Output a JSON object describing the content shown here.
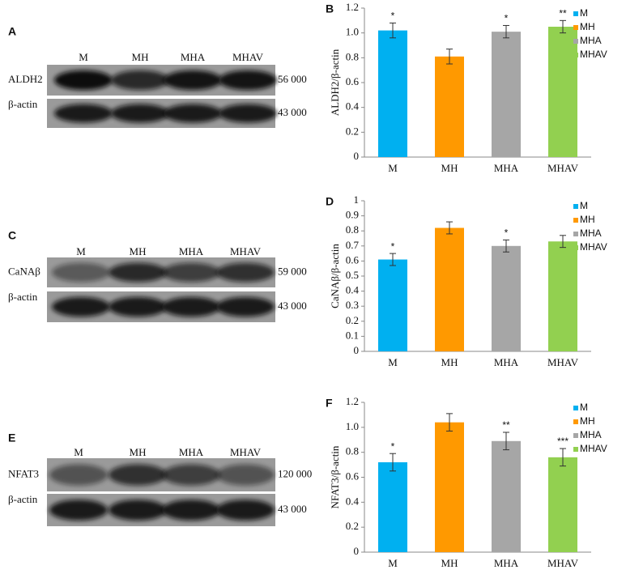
{
  "blots": [
    {
      "panel": "A",
      "lanes": [
        "M",
        "MH",
        "MHA",
        "MHAV"
      ],
      "rows": [
        {
          "protein": "ALDH2",
          "mw": "56 000"
        },
        {
          "protein": "β-actin",
          "mw": "43 000"
        }
      ]
    },
    {
      "panel": "C",
      "lanes": [
        "M",
        "MH",
        "MHA",
        "MHAV"
      ],
      "rows": [
        {
          "protein": "CaNAβ",
          "mw": "59 000"
        },
        {
          "protein": "β-actin",
          "mw": "43 000"
        }
      ]
    },
    {
      "panel": "E",
      "lanes": [
        "M",
        "MH",
        "MHA",
        "MHAV"
      ],
      "rows": [
        {
          "protein": "NFAT3",
          "mw": "120 000"
        },
        {
          "protein": "β-actin",
          "mw": "43 000"
        }
      ]
    }
  ],
  "chart_data": [
    {
      "type": "bar",
      "panel": "B",
      "y_label": "ALDH2/β-actin",
      "categories": [
        "M",
        "MH",
        "MHA",
        "MHAV"
      ],
      "values": [
        1.02,
        0.81,
        1.01,
        1.05
      ],
      "errors": [
        0.06,
        0.06,
        0.05,
        0.05
      ],
      "significance": [
        "*",
        null,
        "*",
        "**"
      ],
      "colors": [
        "#00b0f0",
        "#ff9900",
        "#a6a6a6",
        "#92d050"
      ],
      "ylim": [
        0,
        1.2
      ],
      "yticks": [
        0,
        0.2,
        0.4,
        0.6,
        0.8,
        {
          "value": 1,
          "label": "1.0"
        },
        1.2
      ],
      "legend": "top-right"
    },
    {
      "type": "bar",
      "panel": "D",
      "y_label": "CaNAβ/β-actin",
      "categories": [
        "M",
        "MH",
        "MHA",
        "MHAV"
      ],
      "values": [
        0.61,
        0.82,
        0.7,
        0.73
      ],
      "errors": [
        0.04,
        0.04,
        0.04,
        0.04
      ],
      "significance": [
        "*",
        null,
        "*",
        null
      ],
      "colors": [
        "#00b0f0",
        "#ff9900",
        "#a6a6a6",
        "#92d050"
      ],
      "ylim": [
        0,
        1
      ],
      "yticks": [
        0,
        0.1,
        0.2,
        0.3,
        0.4,
        0.5,
        0.6,
        0.7,
        0.8,
        0.9,
        1
      ],
      "legend": "top-right"
    },
    {
      "type": "bar",
      "panel": "F",
      "y_label": "NFAT3/β-actin",
      "categories": [
        "M",
        "MH",
        "MHA",
        "MHAV"
      ],
      "values": [
        0.72,
        1.04,
        0.89,
        0.76
      ],
      "errors": [
        0.07,
        0.07,
        0.07,
        0.07
      ],
      "significance": [
        "*",
        null,
        "**",
        "***"
      ],
      "colors": [
        "#00b0f0",
        "#ff9900",
        "#a6a6a6",
        "#92d050"
      ],
      "ylim": [
        0,
        1.2
      ],
      "yticks": [
        0,
        0.2,
        0.4,
        0.6,
        0.8,
        {
          "value": 1,
          "label": "1.0"
        },
        1.2
      ],
      "legend": "top-right"
    }
  ]
}
